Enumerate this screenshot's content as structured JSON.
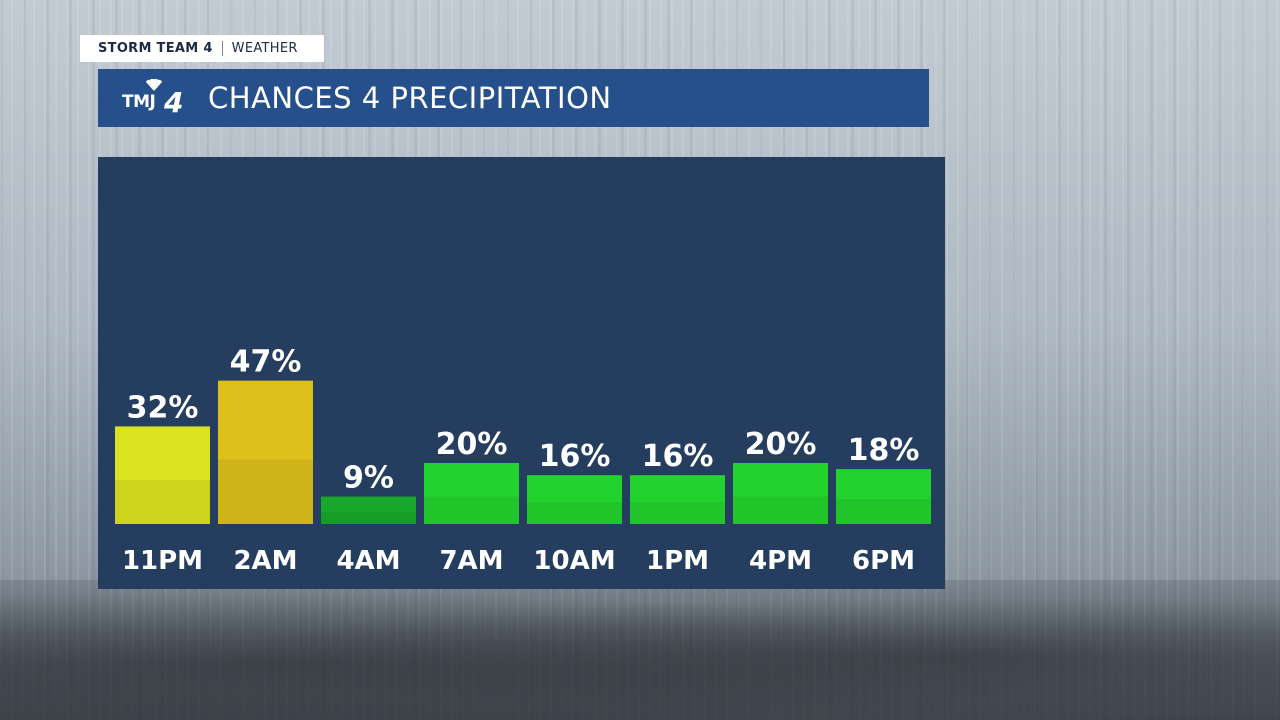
{
  "header": {
    "show_name": "STORM TEAM 4",
    "section": "WEATHER"
  },
  "logo": {
    "call_letters": "TMJ",
    "channel_number": "4"
  },
  "title": "CHANCES 4 PRECIPITATION",
  "colors": {
    "title_bar": "#25508c",
    "panel": "#253d5e",
    "low": "#17a72a",
    "mid": "#22d22d",
    "high_yellow_green": "#dbe21f",
    "high_gold": "#ddbf1a"
  },
  "chart_data": {
    "type": "bar",
    "categories": [
      "11PM",
      "2AM",
      "4AM",
      "7AM",
      "10AM",
      "1PM",
      "4PM",
      "6PM"
    ],
    "values": [
      32,
      47,
      9,
      20,
      16,
      16,
      20,
      18
    ],
    "value_labels": [
      "32%",
      "47%",
      "9%",
      "20%",
      "16%",
      "16%",
      "20%",
      "18%"
    ],
    "bar_colors": [
      "#dbe21f",
      "#ddbf1a",
      "#17a72a",
      "#22d22d",
      "#22d22d",
      "#22d22d",
      "#22d22d",
      "#22d22d"
    ],
    "ylim": [
      0,
      100
    ],
    "grid": false,
    "legend": "none"
  }
}
